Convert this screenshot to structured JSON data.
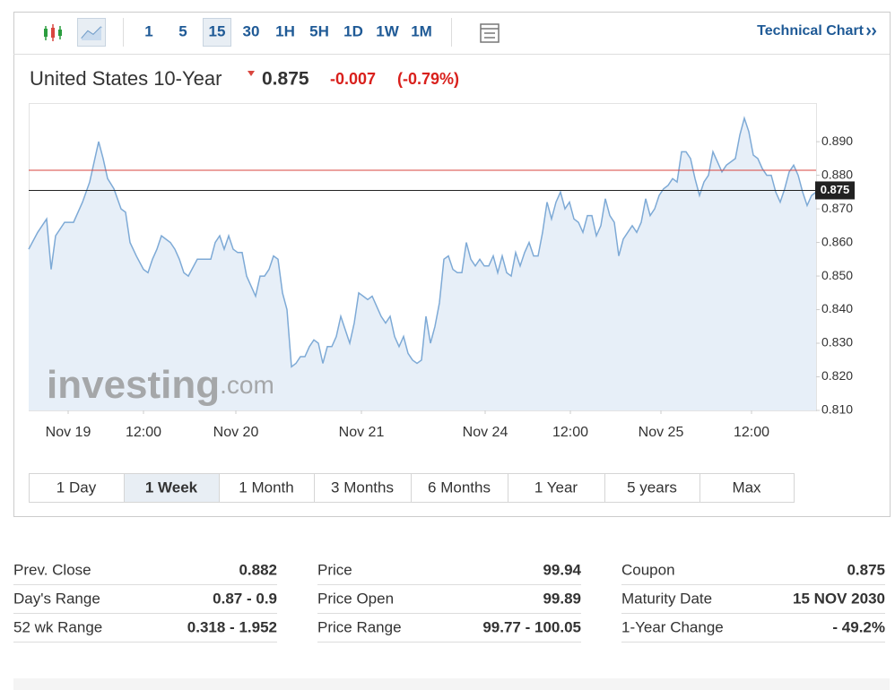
{
  "toolbar": {
    "intervals": [
      "1",
      "5",
      "15",
      "30",
      "1H",
      "5H",
      "1D",
      "1W",
      "1M"
    ],
    "active_interval": 2,
    "link": "Technical Chart"
  },
  "header": {
    "name": "United States 10-Year",
    "price": "0.875",
    "change": "-0.007",
    "change_pct": "(-0.79%)"
  },
  "chart_data": {
    "type": "line",
    "color": "#7eaad6",
    "fill": "#e7eff8",
    "x": [
      32,
      42,
      52,
      57,
      62,
      72,
      82,
      92,
      100,
      105,
      110,
      115,
      120,
      127,
      135,
      140,
      145,
      152,
      160,
      165,
      170,
      175,
      180,
      190,
      195,
      200,
      205,
      210,
      220,
      230,
      235,
      240,
      245,
      250,
      255,
      260,
      265,
      270,
      275,
      280,
      285,
      290,
      295,
      300,
      305,
      310,
      315,
      320,
      325,
      330,
      335,
      340,
      345,
      350,
      355,
      360,
      365,
      370,
      375,
      380,
      385,
      390,
      395,
      400,
      405,
      410,
      415,
      420,
      425,
      430,
      435,
      440,
      445,
      450,
      455,
      460,
      465,
      470,
      475,
      480,
      485,
      490,
      495,
      500,
      505,
      510,
      515,
      520,
      525,
      530,
      535,
      540,
      545,
      550,
      555,
      560,
      565,
      570,
      575,
      580,
      585,
      590,
      595,
      600,
      605,
      610,
      615,
      620,
      625,
      630,
      635,
      640,
      645,
      650,
      655,
      660,
      665,
      670,
      675,
      680,
      685,
      690,
      695,
      700,
      705,
      710,
      715,
      720,
      725,
      730,
      735,
      740,
      745,
      750,
      755,
      760,
      765,
      770,
      775,
      780,
      785,
      790,
      795,
      800,
      805,
      810,
      815,
      820,
      825,
      830,
      835,
      840,
      845,
      850,
      855,
      860,
      865,
      870,
      875,
      880,
      885,
      890,
      895,
      900,
      905,
      910
    ],
    "values": [
      0.858,
      0.863,
      0.867,
      0.852,
      0.862,
      0.866,
      0.866,
      0.872,
      0.878,
      0.884,
      0.89,
      0.885,
      0.879,
      0.876,
      0.87,
      0.869,
      0.86,
      0.856,
      0.852,
      0.851,
      0.855,
      0.858,
      0.862,
      0.86,
      0.858,
      0.855,
      0.851,
      0.85,
      0.855,
      0.855,
      0.855,
      0.86,
      0.862,
      0.858,
      0.862,
      0.858,
      0.857,
      0.857,
      0.85,
      0.847,
      0.844,
      0.85,
      0.85,
      0.852,
      0.856,
      0.855,
      0.845,
      0.84,
      0.823,
      0.824,
      0.826,
      0.826,
      0.829,
      0.831,
      0.83,
      0.824,
      0.829,
      0.829,
      0.832,
      0.838,
      0.834,
      0.83,
      0.836,
      0.845,
      0.844,
      0.843,
      0.844,
      0.841,
      0.838,
      0.836,
      0.838,
      0.832,
      0.829,
      0.832,
      0.827,
      0.825,
      0.824,
      0.825,
      0.838,
      0.83,
      0.835,
      0.842,
      0.855,
      0.856,
      0.852,
      0.851,
      0.851,
      0.86,
      0.855,
      0.853,
      0.855,
      0.853,
      0.853,
      0.856,
      0.851,
      0.856,
      0.851,
      0.85,
      0.857,
      0.853,
      0.857,
      0.86,
      0.856,
      0.856,
      0.863,
      0.872,
      0.867,
      0.872,
      0.875,
      0.87,
      0.872,
      0.867,
      0.866,
      0.863,
      0.868,
      0.868,
      0.862,
      0.865,
      0.873,
      0.868,
      0.866,
      0.856,
      0.861,
      0.863,
      0.865,
      0.863,
      0.866,
      0.873,
      0.868,
      0.87,
      0.874,
      0.876,
      0.877,
      0.879,
      0.878,
      0.887,
      0.887,
      0.885,
      0.879,
      0.874,
      0.878,
      0.88,
      0.887,
      0.884,
      0.881,
      0.883,
      0.884,
      0.885,
      0.892,
      0.897,
      0.893,
      0.886,
      0.885,
      0.882,
      0.88,
      0.88,
      0.875,
      0.872,
      0.876,
      0.881,
      0.883,
      0.88,
      0.875,
      0.871,
      0.874,
      0.875
    ],
    "xlim": [
      32,
      910
    ],
    "xticks": [
      {
        "value": 76,
        "label": "Nov 19"
      },
      {
        "value": 160,
        "label": "12:00"
      },
      {
        "value": 263,
        "label": "Nov 20"
      },
      {
        "value": 403,
        "label": "Nov 21"
      },
      {
        "value": 541,
        "label": "Nov 24"
      },
      {
        "value": 636,
        "label": "12:00"
      },
      {
        "value": 737,
        "label": "Nov 25"
      },
      {
        "value": 838,
        "label": "12:00"
      }
    ],
    "ylim": [
      0.81,
      0.9015
    ],
    "yticks": [
      {
        "value": 0.81,
        "label": "0.810"
      },
      {
        "value": 0.82,
        "label": "0.820"
      },
      {
        "value": 0.83,
        "label": "0.830"
      },
      {
        "value": 0.84,
        "label": "0.840"
      },
      {
        "value": 0.85,
        "label": "0.850"
      },
      {
        "value": 0.86,
        "label": "0.860"
      },
      {
        "value": 0.87,
        "label": "0.870"
      },
      {
        "value": 0.88,
        "label": "0.880"
      },
      {
        "value": 0.89,
        "label": "0.890"
      }
    ],
    "prev_close_line": 0.8815,
    "prev_close_color": "#d9463f",
    "current_line": {
      "value": 0.8755,
      "label": "0.875"
    },
    "watermark": {
      "brand": "investing",
      "suffix": ".com"
    }
  },
  "ranges": {
    "items": [
      "1 Day",
      "1 Week",
      "1 Month",
      "3 Months",
      "6 Months",
      "1 Year",
      "5 years",
      "Max"
    ],
    "active": 1
  },
  "stats": [
    [
      [
        "Prev. Close",
        "0.882"
      ],
      [
        "Day's Range",
        "0.87 - 0.9"
      ],
      [
        "52 wk Range",
        "0.318 - 1.952"
      ]
    ],
    [
      [
        "Price",
        "99.94"
      ],
      [
        "Price Open",
        "99.89"
      ],
      [
        "Price Range",
        "99.77 - 100.05"
      ]
    ],
    [
      [
        "Coupon",
        "0.875"
      ],
      [
        "Maturity Date",
        "15 NOV 2030"
      ],
      [
        "1-Year Change",
        "- 49.2%"
      ]
    ]
  ]
}
